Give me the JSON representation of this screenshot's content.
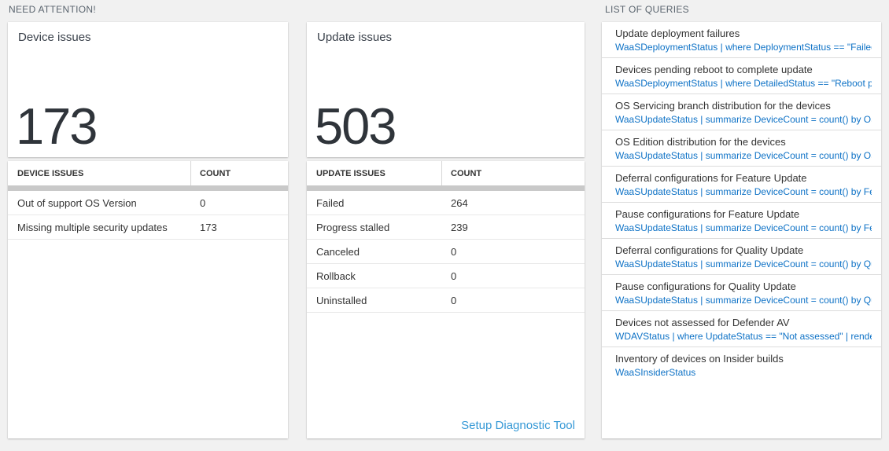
{
  "colors": {
    "page_bg": "#f1f1f1",
    "card_bg": "#ffffff",
    "section_header_text": "#5a646e",
    "big_number_text": "#2f343a",
    "query_code_blue": "#0e72c6",
    "footer_link_blue": "#3699d6",
    "scrollbar_gray": "#c9c9c9"
  },
  "need_attention": {
    "header": "NEED ATTENTION!",
    "tiles": [
      {
        "label": "Device issues",
        "value": "173"
      },
      {
        "label": "Update issues",
        "value": "503"
      }
    ],
    "tables": [
      {
        "columns": [
          "DEVICE ISSUES",
          "COUNT"
        ],
        "rows": [
          {
            "name": "Out of support OS Version",
            "count": "0"
          },
          {
            "name": "Missing multiple security updates",
            "count": "173"
          }
        ]
      },
      {
        "columns": [
          "UPDATE ISSUES",
          "COUNT"
        ],
        "rows": [
          {
            "name": "Failed",
            "count": "264"
          },
          {
            "name": "Progress stalled",
            "count": "239"
          },
          {
            "name": "Canceled",
            "count": "0"
          },
          {
            "name": "Rollback",
            "count": "0"
          },
          {
            "name": "Uninstalled",
            "count": "0"
          }
        ],
        "footer_link": "Setup Diagnostic Tool"
      }
    ]
  },
  "queries": {
    "header": "LIST OF QUERIES",
    "items": [
      {
        "title": "Update deployment failures",
        "code": "WaaSDeploymentStatus | where DeploymentStatus == \"Failed\" |..."
      },
      {
        "title": "Devices pending reboot to complete update",
        "code": "WaaSDeploymentStatus | where DetailedStatus == \"Reboot pend..."
      },
      {
        "title": "OS Servicing branch distribution for the devices",
        "code": "WaaSUpdateStatus | summarize DeviceCount = count() by OSSer..."
      },
      {
        "title": "OS Edition distribution for the devices",
        "code": "WaaSUpdateStatus | summarize DeviceCount = count() by OSEdit..."
      },
      {
        "title": "Deferral configurations for Feature Update",
        "code": "WaaSUpdateStatus | summarize DeviceCount = count() by Featur..."
      },
      {
        "title": "Pause configurations for Feature Update",
        "code": "WaaSUpdateStatus | summarize DeviceCount = count() by Featur..."
      },
      {
        "title": "Deferral configurations for Quality Update",
        "code": "WaaSUpdateStatus | summarize DeviceCount = count() by Qualit..."
      },
      {
        "title": "Pause configurations for Quality Update",
        "code": "WaaSUpdateStatus | summarize DeviceCount = count() by Qualit..."
      },
      {
        "title": "Devices not assessed for Defender AV",
        "code": "WDAVStatus | where UpdateStatus == \"Not assessed\" | render ta..."
      },
      {
        "title": "Inventory of devices on Insider builds",
        "code": "WaaSInsiderStatus"
      }
    ]
  }
}
